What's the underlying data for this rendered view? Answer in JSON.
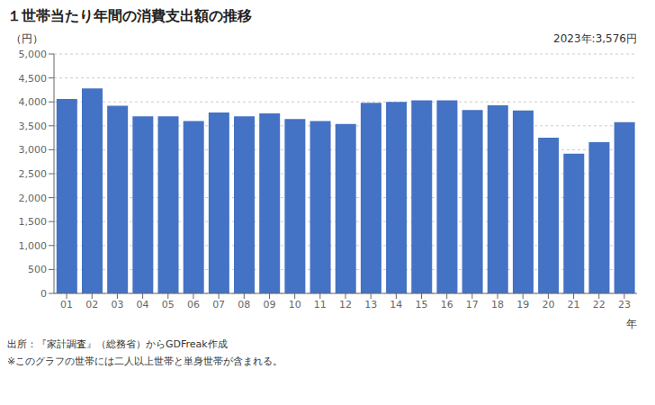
{
  "chart_data": {
    "type": "bar",
    "title": "１世帯当たり年間の消費支出額の推移",
    "y_label": "（円）",
    "x_label": "年",
    "annotations": [
      "2023年:3,576円",
      "出所：『家計調査』（総務省）からGDFreak作成",
      "※このグラフの世帯には二人以上世帯と単身世帯が含まれる。"
    ],
    "categories": [
      "01",
      "02",
      "03",
      "04",
      "05",
      "06",
      "07",
      "08",
      "09",
      "10",
      "11",
      "12",
      "13",
      "14",
      "15",
      "16",
      "17",
      "18",
      "19",
      "20",
      "21",
      "22",
      "23"
    ],
    "values": [
      4060,
      4280,
      3920,
      3700,
      3700,
      3600,
      3780,
      3700,
      3760,
      3640,
      3600,
      3540,
      3980,
      4000,
      4030,
      4030,
      3830,
      3930,
      3820,
      3250,
      2920,
      3160,
      3576
    ],
    "color": "#4472C4",
    "ylim": [
      0,
      5000
    ],
    "yticks": [
      0,
      500,
      {
        "value": 1000,
        "label": "1,000"
      },
      {
        "value": 1500,
        "label": "1,500"
      },
      {
        "value": 2000,
        "label": "2,000"
      },
      {
        "value": 2500,
        "label": "2,500"
      },
      {
        "value": 3000,
        "label": "3,000"
      },
      {
        "value": 3500,
        "label": "3,500"
      },
      {
        "value": 4000,
        "label": "4,000"
      },
      {
        "value": 4500,
        "label": "4,500"
      },
      {
        "value": 5000,
        "label": "5,000"
      }
    ],
    "grid": true
  }
}
